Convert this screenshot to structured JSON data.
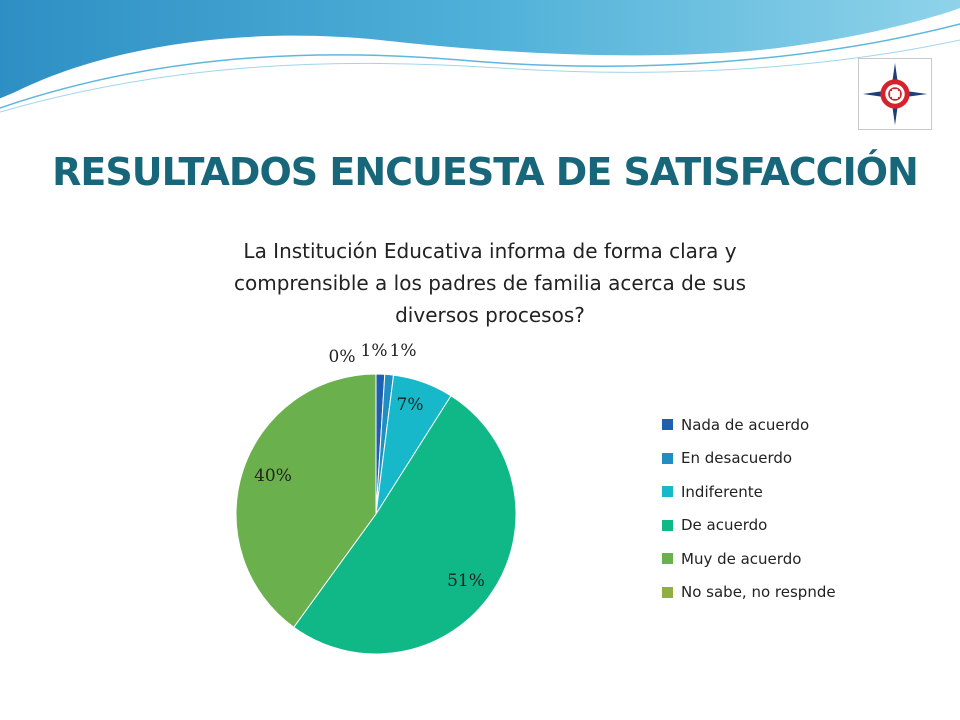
{
  "slide": {
    "title": "RESULTADOS ENCUESTA DE  SATISFACCIÓN"
  },
  "logo": {
    "icon": "compass-rose-emblem-icon"
  },
  "chart_data": {
    "type": "pie",
    "title": "La Institución Educativa informa de forma clara y comprensible a los padres de familia acerca de sus diversos procesos?",
    "title_lines": [
      "La Institución Educativa informa de forma clara y",
      "comprensible a los padres de familia acerca de sus",
      "diversos procesos?"
    ],
    "categories": [
      "Nada de acuerdo",
      "En desacuerdo",
      "Indiferente",
      "De acuerdo",
      "Muy de acuerdo",
      "No sabe, no respnde"
    ],
    "values": [
      1,
      1,
      7,
      51,
      40,
      0
    ],
    "data_labels": [
      "1%",
      "1%",
      "7%",
      "51%",
      "40%",
      "0%"
    ],
    "colors": [
      "#1f5fb0",
      "#1f8fc2",
      "#17b8c9",
      "#10b888",
      "#6ab04c",
      "#8fb040"
    ],
    "legend_position": "right"
  }
}
